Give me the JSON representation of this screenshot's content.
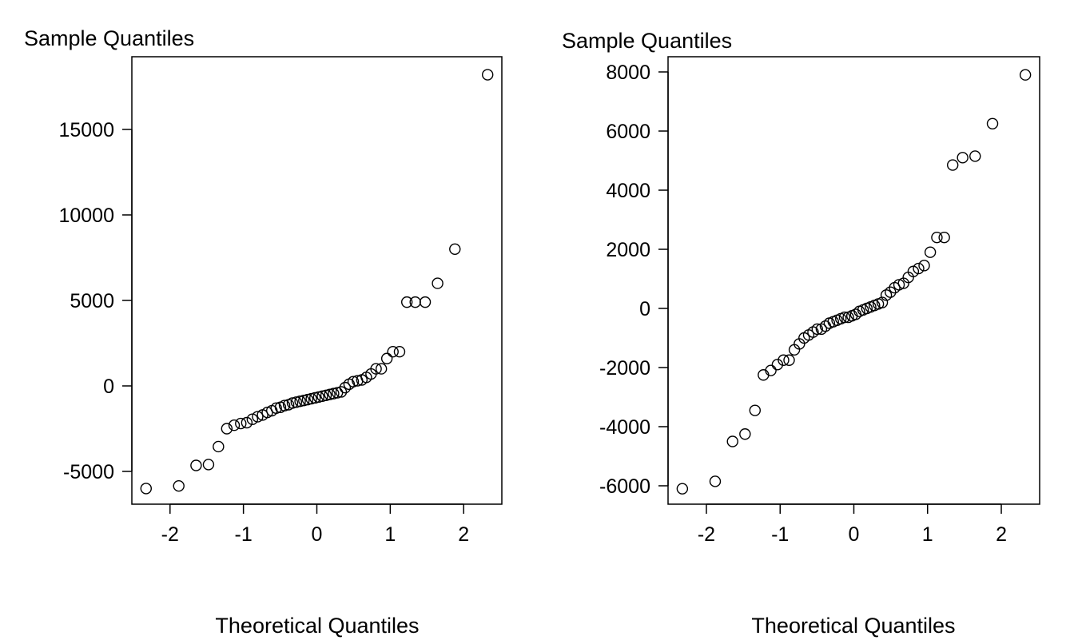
{
  "chart_data": [
    {
      "type": "scatter",
      "ylabel": "Sample Quantiles",
      "xlabel": "Theoretical Quantiles",
      "xlim": [
        -2.52,
        2.52
      ],
      "ylim": [
        -6916,
        19252
      ],
      "xticks": [
        -2,
        -1,
        0,
        1,
        2
      ],
      "yticks": [
        -5000,
        0,
        5000,
        10000,
        15000
      ],
      "grid": false,
      "marker": "open-circle",
      "sample_values": [
        -6000,
        -5850,
        -4650,
        -4600,
        -3550,
        -2500,
        -2300,
        -2200,
        -2150,
        -1950,
        -1800,
        -1700,
        -1550,
        -1450,
        -1300,
        -1250,
        -1150,
        -1100,
        -1000,
        -950,
        -900,
        -850,
        -800,
        -750,
        -700,
        -650,
        -600,
        -550,
        -500,
        -450,
        -400,
        -350,
        -100,
        100,
        250,
        300,
        350,
        500,
        700,
        1000,
        1000,
        1600,
        2000,
        2000,
        4900,
        4900,
        4900,
        6000,
        8000,
        18200
      ]
    },
    {
      "type": "scatter",
      "ylabel": "Sample Quantiles",
      "xlabel": "Theoretical Quantiles",
      "xlim": [
        -2.52,
        2.52
      ],
      "ylim": [
        -6622,
        8514
      ],
      "xticks": [
        -2,
        -1,
        0,
        1,
        2
      ],
      "yticks": [
        -6000,
        -4000,
        -2000,
        0,
        2000,
        4000,
        6000,
        8000
      ],
      "grid": false,
      "marker": "open-circle",
      "sample_values": [
        -6100,
        -5850,
        -4500,
        -4250,
        -3450,
        -2250,
        -2100,
        -1900,
        -1750,
        -1750,
        -1400,
        -1200,
        -1000,
        -900,
        -800,
        -700,
        -700,
        -600,
        -500,
        -450,
        -400,
        -350,
        -300,
        -300,
        -250,
        -200,
        -100,
        -50,
        0,
        50,
        100,
        150,
        200,
        450,
        550,
        700,
        800,
        850,
        1050,
        1250,
        1350,
        1450,
        1900,
        2400,
        2400,
        4850,
        5100,
        5150,
        6250,
        7900
      ]
    }
  ]
}
